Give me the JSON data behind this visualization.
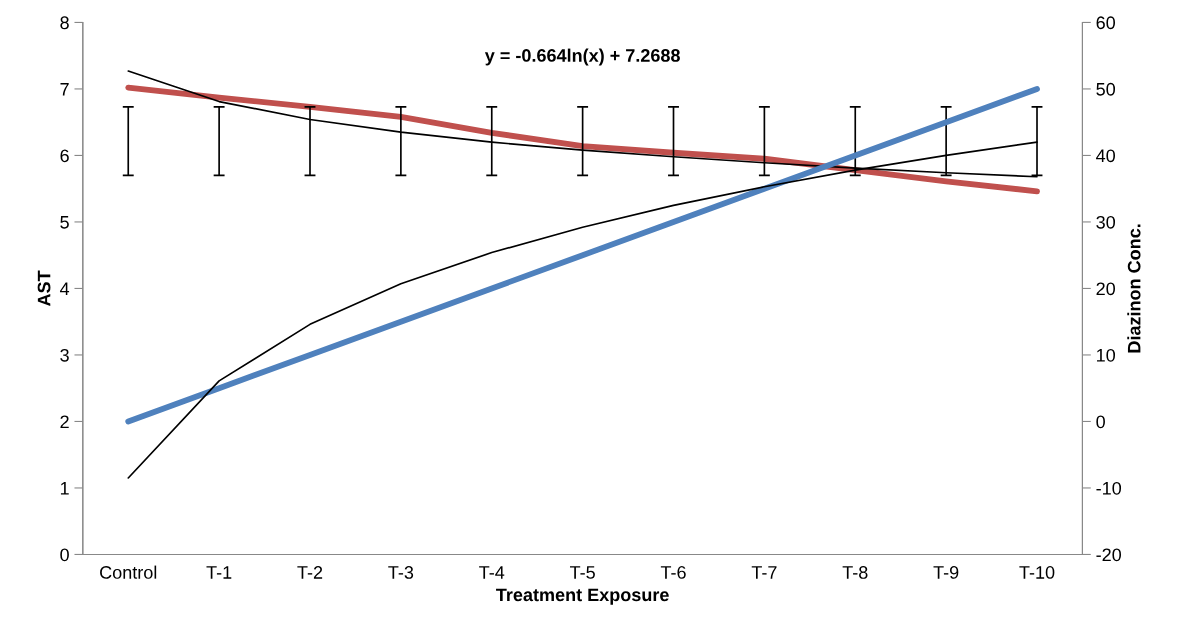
{
  "chart_data": {
    "type": "line",
    "xlabel": "Treatment Exposure",
    "ylabel": "AST",
    "y2label": "Diazinon Conc.",
    "categories": [
      "Control",
      "T-1",
      "T-2",
      "T-3",
      "T-4",
      "T-5",
      "T-6",
      "T-7",
      "T-8",
      "T-9",
      "T-10"
    ],
    "series": [
      {
        "color": "#c0504d",
        "values": [
          7.02,
          6.87,
          6.73,
          6.58,
          6.34,
          6.14,
          6.04,
          5.95,
          5.78,
          5.61,
          5.46
        ],
        "errors": [
          [
            5.7,
            6.73
          ],
          [
            5.7,
            6.73
          ],
          [
            5.7,
            6.73
          ],
          [
            5.7,
            6.73
          ],
          [
            5.7,
            6.73
          ],
          [
            5.7,
            6.73
          ],
          [
            5.7,
            6.73
          ],
          [
            5.7,
            6.73
          ],
          [
            5.7,
            6.73
          ],
          [
            5.7,
            6.73
          ],
          [
            5.7,
            6.73
          ]
        ]
      },
      {
        "color": "#4f81bd",
        "axis": "y2",
        "values": [
          0,
          5,
          10,
          15,
          20,
          25,
          30,
          35,
          40,
          45,
          50
        ]
      },
      {
        "color": "#000000",
        "values": [
          7.27,
          6.81,
          6.54,
          6.35,
          6.2,
          6.08,
          5.98,
          5.89,
          5.81,
          5.74,
          5.68
        ]
      },
      {
        "color": "#000000",
        "axis": "y2",
        "values": [
          -8.5,
          6.1,
          14.6,
          20.7,
          25.4,
          29.2,
          32.5,
          35.3,
          37.8,
          40.0,
          42.0
        ]
      }
    ],
    "ylim": [
      0,
      8
    ],
    "yticks": [
      0,
      1,
      2,
      3,
      4,
      5,
      6,
      7,
      8
    ],
    "y2lim": [
      -20,
      60
    ],
    "y2ticks": [
      -20,
      -10,
      0,
      10,
      20,
      30,
      40,
      50,
      60
    ],
    "annotations": [
      "y = -0.664ln(x) + 7.2688"
    ],
    "grid": false,
    "marker": "none",
    "line_style": "solid"
  }
}
